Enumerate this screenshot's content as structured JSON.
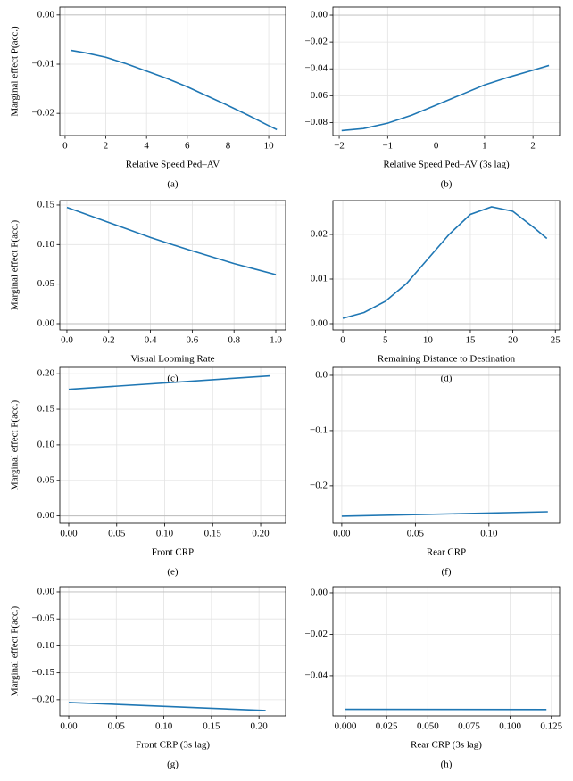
{
  "chart_data": [
    {
      "type": "line",
      "color": "#1f77b4",
      "grid": true,
      "hline": 0,
      "x": [
        0.3,
        1,
        2,
        3,
        4,
        5,
        6,
        7,
        8,
        9,
        10,
        10.4
      ],
      "values": [
        -0.0072,
        -0.0077,
        -0.0086,
        -0.0099,
        -0.0114,
        -0.0129,
        -0.0146,
        -0.0165,
        -0.0184,
        -0.0204,
        -0.0225,
        -0.0233
      ],
      "xlim": [
        -0.26,
        10.83
      ],
      "ylim": [
        -0.0245,
        0.0016
      ],
      "xticks": [
        0,
        2,
        4,
        6,
        8,
        10
      ],
      "yticks": [
        {
          "value": 0,
          "label": "0.00"
        },
        {
          "value": -0.01,
          "label": "−0.01"
        },
        {
          "value": -0.02,
          "label": "−0.02"
        }
      ],
      "xlabel": "Relative Speed Ped–AV",
      "ylabel": "Marginal effect P(acc.)",
      "caption": "(a)"
    },
    {
      "type": "line",
      "color": "#1f77b4",
      "grid": true,
      "hline": 0,
      "x": [
        -1.95,
        -1.5,
        -1,
        -0.5,
        0,
        0.5,
        1,
        1.5,
        2,
        2.33
      ],
      "values": [
        -0.086,
        -0.0845,
        -0.0805,
        -0.0745,
        -0.067,
        -0.0595,
        -0.052,
        -0.0462,
        -0.041,
        -0.0375
      ],
      "xlim": [
        -2.13,
        2.55
      ],
      "ylim": [
        -0.0897,
        0.006
      ],
      "xticks": [
        {
          "value": -2,
          "label": "−2"
        },
        {
          "value": -1,
          "label": "−1"
        },
        0,
        1,
        2
      ],
      "yticks": [
        {
          "value": 0,
          "label": "0.00"
        },
        {
          "value": -0.02,
          "label": "−0.02"
        },
        {
          "value": -0.04,
          "label": "−0.04"
        },
        {
          "value": -0.06,
          "label": "−0.06"
        },
        {
          "value": -0.08,
          "label": "−0.08"
        }
      ],
      "xlabel": "Relative Speed Ped–AV (3s lag)",
      "caption": "(b)"
    },
    {
      "type": "line",
      "color": "#1f77b4",
      "grid": true,
      "hline": 0,
      "x": [
        0,
        0.1,
        0.2,
        0.3,
        0.4,
        0.5,
        0.6,
        0.7,
        0.8,
        0.9,
        1.0
      ],
      "values": [
        0.147,
        0.1375,
        0.128,
        0.1185,
        0.109,
        0.1003,
        0.092,
        0.084,
        0.076,
        0.069,
        0.062
      ],
      "xlim": [
        -0.034,
        1.047
      ],
      "ylim": [
        -0.0079,
        0.1556
      ],
      "xticks": [
        {
          "value": 0,
          "label": "0.0"
        },
        0.2,
        0.4,
        0.6,
        0.8,
        {
          "value": 1,
          "label": "1.0"
        }
      ],
      "yticks": [
        {
          "value": 0,
          "label": "0.00"
        },
        0.05,
        {
          "value": 0.1,
          "label": "0.10"
        },
        0.15
      ],
      "xlabel": "Visual Looming Rate",
      "ylabel": "Marginal effect P(acc.)",
      "caption": "(c)"
    },
    {
      "type": "line",
      "color": "#1f77b4",
      "grid": true,
      "hline": 0,
      "x": [
        0,
        2.5,
        5,
        7.5,
        10,
        12.5,
        15,
        17.5,
        20,
        22.5,
        24
      ],
      "values": [
        0.0012,
        0.0025,
        0.005,
        0.009,
        0.0145,
        0.02,
        0.0245,
        0.0262,
        0.0252,
        0.0215,
        0.0191
      ],
      "xlim": [
        -1.16,
        25.5
      ],
      "ylim": [
        -0.0014,
        0.0276
      ],
      "xticks": [
        0,
        5,
        10,
        15,
        20,
        25
      ],
      "yticks": [
        {
          "value": 0,
          "label": "0.00"
        },
        0.01,
        0.02
      ],
      "xlabel": "Remaining Distance to Destination",
      "caption": "(d)"
    },
    {
      "type": "line",
      "color": "#1f77b4",
      "grid": true,
      "hline": 0,
      "x": [
        0,
        0.21
      ],
      "values": [
        0.178,
        0.197
      ],
      "xlim": [
        -0.0093,
        0.226
      ],
      "ylim": [
        -0.0105,
        0.209
      ],
      "xticks": [
        {
          "value": 0,
          "label": "0.00"
        },
        0.05,
        {
          "value": 0.1,
          "label": "0.10"
        },
        0.15,
        {
          "value": 0.2,
          "label": "0.20"
        }
      ],
      "yticks": [
        {
          "value": 0,
          "label": "0.00"
        },
        0.05,
        {
          "value": 0.1,
          "label": "0.10"
        },
        0.15,
        {
          "value": 0.2,
          "label": "0.20"
        }
      ],
      "xlabel": "Front CRP",
      "ylabel": "Marginal effect P(acc.)",
      "caption": "(e)"
    },
    {
      "type": "line",
      "color": "#1f77b4",
      "grid": true,
      "hline": 0,
      "x": [
        0,
        0.14
      ],
      "values": [
        -0.255,
        -0.247
      ],
      "xlim": [
        -0.006,
        0.148
      ],
      "ylim": [
        -0.268,
        0.0145
      ],
      "xticks": [
        {
          "value": 0,
          "label": "0.00"
        },
        0.05,
        {
          "value": 0.1,
          "label": "0.10"
        }
      ],
      "yticks": [
        {
          "value": 0,
          "label": "0.0"
        },
        {
          "value": -0.1,
          "label": "−0.1"
        },
        {
          "value": -0.2,
          "label": "−0.2"
        }
      ],
      "xlabel": "Rear CRP",
      "caption": "(f)"
    },
    {
      "type": "line",
      "color": "#1f77b4",
      "grid": true,
      "hline": 0,
      "x": [
        0,
        0.207
      ],
      "values": [
        -0.205,
        -0.22
      ],
      "xlim": [
        -0.0094,
        0.228
      ],
      "ylim": [
        -0.23,
        0.0099
      ],
      "xticks": [
        {
          "value": 0,
          "label": "0.00"
        },
        0.05,
        {
          "value": 0.1,
          "label": "0.10"
        },
        0.15,
        {
          "value": 0.2,
          "label": "0.20"
        }
      ],
      "yticks": [
        {
          "value": 0,
          "label": "0.00"
        },
        {
          "value": -0.05,
          "label": "−0.05"
        },
        {
          "value": -0.1,
          "label": "−0.10"
        },
        {
          "value": -0.15,
          "label": "−0.15"
        },
        {
          "value": -0.2,
          "label": "−0.20"
        }
      ],
      "xlabel": "Front CRP (3s lag)",
      "ylabel": "Marginal effect P(acc.)",
      "caption": "(g)"
    },
    {
      "type": "line",
      "color": "#1f77b4",
      "grid": true,
      "hline": 0,
      "x": [
        0,
        0.122
      ],
      "values": [
        -0.0562,
        -0.0563
      ],
      "xlim": [
        -0.0076,
        0.13
      ],
      "ylim": [
        -0.0594,
        0.003
      ],
      "xticks": [
        {
          "value": 0,
          "label": "0.000"
        },
        0.025,
        {
          "value": 0.05,
          "label": "0.050"
        },
        0.075,
        {
          "value": 0.1,
          "label": "0.100"
        },
        0.125
      ],
      "yticks": [
        {
          "value": 0,
          "label": "0.00"
        },
        {
          "value": -0.02,
          "label": "−0.02"
        },
        {
          "value": -0.04,
          "label": "−0.04"
        }
      ],
      "xlabel": "Rear CRP (3s lag)",
      "caption": "(h)"
    }
  ]
}
